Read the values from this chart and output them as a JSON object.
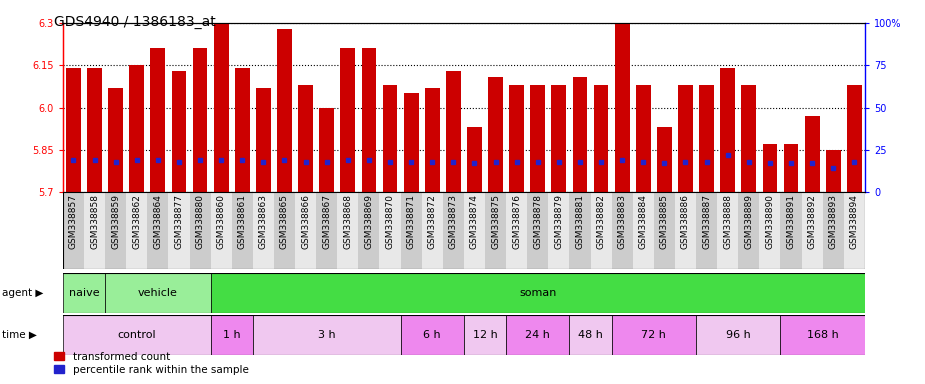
{
  "title": "GDS4940 / 1386183_at",
  "samples": [
    "GSM338857",
    "GSM338858",
    "GSM338859",
    "GSM338862",
    "GSM338864",
    "GSM338877",
    "GSM338880",
    "GSM338860",
    "GSM338861",
    "GSM338863",
    "GSM338865",
    "GSM338866",
    "GSM338867",
    "GSM338868",
    "GSM338869",
    "GSM338870",
    "GSM338871",
    "GSM338872",
    "GSM338873",
    "GSM338874",
    "GSM338875",
    "GSM338876",
    "GSM338878",
    "GSM338879",
    "GSM338881",
    "GSM338882",
    "GSM338883",
    "GSM338884",
    "GSM338885",
    "GSM338886",
    "GSM338887",
    "GSM338888",
    "GSM338889",
    "GSM338890",
    "GSM338891",
    "GSM338892",
    "GSM338893",
    "GSM338894"
  ],
  "bar_values": [
    6.14,
    6.14,
    6.07,
    6.15,
    6.21,
    6.13,
    6.21,
    6.3,
    6.14,
    6.07,
    6.28,
    6.08,
    6.0,
    6.21,
    6.21,
    6.08,
    6.05,
    6.07,
    6.13,
    5.93,
    6.11,
    6.08,
    6.08,
    6.08,
    6.11,
    6.08,
    6.3,
    6.08,
    5.93,
    6.08,
    6.08,
    6.14,
    6.08,
    5.87,
    5.87,
    5.97,
    5.85,
    6.08
  ],
  "percentile_values": [
    19,
    19,
    18,
    19,
    19,
    18,
    19,
    19,
    19,
    18,
    19,
    18,
    18,
    19,
    19,
    18,
    18,
    18,
    18,
    17,
    18,
    18,
    18,
    18,
    18,
    18,
    19,
    18,
    17,
    18,
    18,
    22,
    18,
    17,
    17,
    17,
    14,
    18
  ],
  "bar_color": "#cc0000",
  "blue_color": "#2222cc",
  "ymin": 5.7,
  "ymax": 6.3,
  "yticks_left": [
    5.7,
    5.85,
    6.0,
    6.15,
    6.3
  ],
  "yticks_right": [
    0,
    25,
    50,
    75,
    100
  ],
  "agent_groups": [
    {
      "label": "naive",
      "start": 0,
      "end": 2,
      "color": "#99ee99"
    },
    {
      "label": "vehicle",
      "start": 2,
      "end": 7,
      "color": "#99ee99"
    },
    {
      "label": "soman",
      "start": 7,
      "end": 38,
      "color": "#44dd44"
    }
  ],
  "time_groups": [
    {
      "label": "control",
      "start": 0,
      "end": 7,
      "color": "#f0c8f0"
    },
    {
      "label": "1 h",
      "start": 7,
      "end": 9,
      "color": "#ee88ee"
    },
    {
      "label": "3 h",
      "start": 9,
      "end": 16,
      "color": "#f0c8f0"
    },
    {
      "label": "6 h",
      "start": 16,
      "end": 19,
      "color": "#ee88ee"
    },
    {
      "label": "12 h",
      "start": 19,
      "end": 21,
      "color": "#f0c8f0"
    },
    {
      "label": "24 h",
      "start": 21,
      "end": 24,
      "color": "#ee88ee"
    },
    {
      "label": "48 h",
      "start": 24,
      "end": 26,
      "color": "#f0c8f0"
    },
    {
      "label": "72 h",
      "start": 26,
      "end": 30,
      "color": "#ee88ee"
    },
    {
      "label": "96 h",
      "start": 30,
      "end": 34,
      "color": "#f0c8f0"
    },
    {
      "label": "168 h",
      "start": 34,
      "end": 38,
      "color": "#ee88ee"
    }
  ],
  "tick_fontsize": 7,
  "label_fontsize": 8,
  "title_fontsize": 10,
  "xtick_fontsize": 6.5
}
